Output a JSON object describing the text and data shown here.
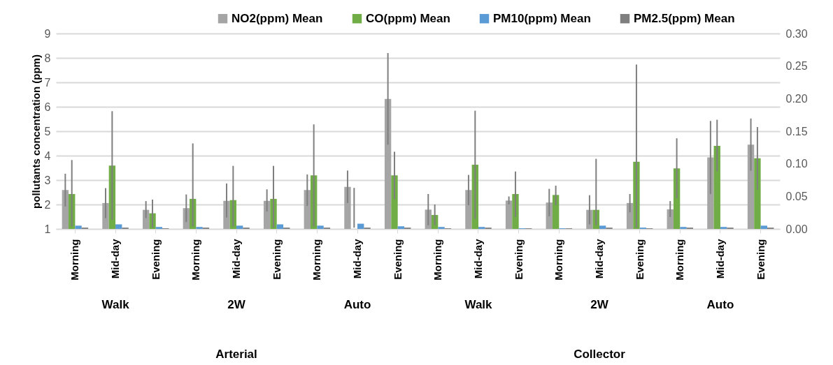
{
  "chart_data": {
    "type": "bar",
    "ylabel": "pollutants concentration (ppm)",
    "categories": [
      "Morning",
      "Mid-day",
      "Evening",
      "Morning",
      "Mid-day",
      "Evening",
      "Morning",
      "Mid-day",
      "Evening",
      "Morning",
      "Mid-day",
      "Evening",
      "Morning",
      "Mid-day",
      "Evening",
      "Morning",
      "Mid-day",
      "Evening"
    ],
    "series": [
      {
        "name": "NO2(ppm) Mean",
        "color": "#a5a5a5",
        "values": [
          2.59,
          2.06,
          1.78,
          1.85,
          2.15,
          2.15,
          2.59,
          2.72,
          6.32,
          1.79,
          2.59,
          2.16,
          2.08,
          1.78,
          2.06,
          1.8,
          3.93,
          4.45
        ],
        "errors": [
          [
            1.92,
            3.26
          ],
          [
            1.44,
            2.67
          ],
          [
            1.44,
            2.14
          ],
          [
            1.28,
            2.41
          ],
          [
            1.47,
            2.86
          ],
          [
            1.71,
            2.62
          ],
          [
            1.94,
            3.23
          ],
          [
            2.06,
            3.39
          ],
          [
            4.45,
            8.2
          ],
          [
            1.15,
            2.43
          ],
          [
            1.97,
            3.21
          ],
          [
            2.0,
            2.33
          ],
          [
            1.52,
            2.64
          ],
          [
            1.19,
            2.38
          ],
          [
            1.68,
            2.43
          ],
          [
            1.49,
            2.14
          ],
          [
            2.43,
            5.42
          ],
          [
            3.38,
            5.52
          ]
        ]
      },
      {
        "name": "CO(ppm) Mean",
        "color": "#70ad47",
        "values": [
          2.43,
          3.59,
          1.64,
          2.23,
          2.18,
          2.23,
          3.19,
          1.0,
          3.19,
          1.57,
          3.63,
          2.43,
          2.39,
          1.78,
          3.75,
          3.48,
          4.4,
          3.89
        ],
        "errors": [
          [
            1.1,
            3.82
          ],
          [
            1.37,
            5.82
          ],
          [
            1.05,
            2.2
          ],
          [
            1.1,
            4.5
          ],
          [
            1.1,
            3.58
          ],
          [
            1.05,
            3.58
          ],
          [
            1.1,
            5.28
          ],
          [
            1.05,
            2.68
          ],
          [
            2.22,
            4.16
          ],
          [
            1.15,
            2.0
          ],
          [
            1.41,
            5.84
          ],
          [
            1.49,
            3.35
          ],
          [
            1.97,
            2.77
          ],
          [
            1.15,
            3.87
          ],
          [
            1.05,
            7.73
          ],
          [
            2.26,
            4.71
          ],
          [
            3.36,
            5.47
          ],
          [
            2.61,
            5.17
          ]
        ]
      },
      {
        "name": "PM10(ppm) Mean",
        "color": "#5b9bd5",
        "axis": "y2",
        "values": [
          0.005,
          0.007,
          0.003,
          0.003,
          0.005,
          0.007,
          0.005,
          0.008,
          0.004,
          0.003,
          0.003,
          0.001,
          0.001,
          0.005,
          0.002,
          0.003,
          0.003,
          0.005
        ]
      },
      {
        "name": "PM2.5(ppm) Mean",
        "color": "#7f7f7f",
        "axis": "y2",
        "values": [
          0.002,
          0.002,
          0.001,
          0.002,
          0.002,
          0.002,
          0.002,
          0.002,
          0.002,
          0.001,
          0.002,
          0.001,
          0.001,
          0.002,
          0.001,
          0.002,
          0.002,
          0.002
        ]
      }
    ],
    "ylim": [
      1,
      9
    ],
    "yticks": [
      1,
      2,
      3,
      4,
      5,
      6,
      7,
      8,
      9
    ],
    "y2lim": [
      0,
      0.3
    ],
    "y2ticks": [
      {
        "value": 0,
        "label": "0.00"
      },
      0.05,
      {
        "value": 0.1,
        "label": "0.10"
      },
      0.15,
      {
        "value": 0.2,
        "label": "0.20"
      },
      0.25,
      {
        "value": 0.3,
        "label": "0.30"
      }
    ],
    "grid": "y",
    "legend": "top",
    "annotations": [
      "Walk",
      "2W",
      "Auto",
      "Walk",
      "2W",
      "Auto",
      "Arterial",
      "Collector"
    ]
  }
}
